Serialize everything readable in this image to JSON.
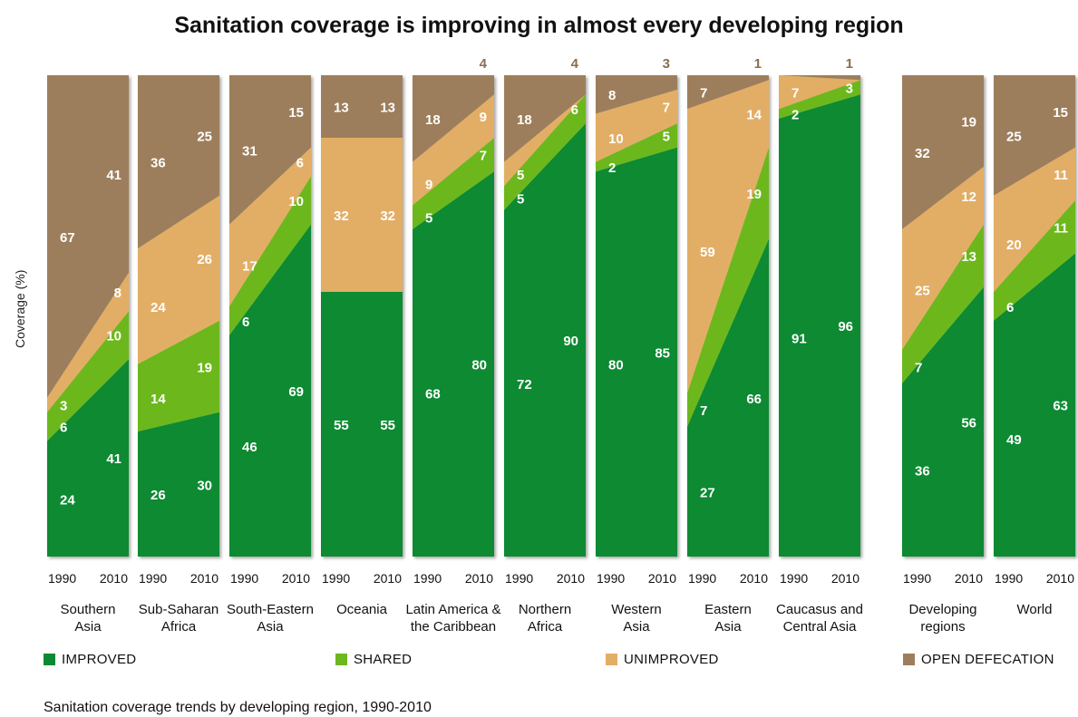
{
  "caption": "Sanitation coverage trends by developing region, 1990-2010",
  "colors": {
    "improved": "#0a8a32",
    "shared": "#6cb81f",
    "unimproved": "#e2ae66",
    "open_defecation": "#9d7e5c",
    "label_light": "#ffffff",
    "label_dark": "#8a6e4c"
  },
  "chart_data": {
    "type": "area",
    "title": "Sanitation coverage is improving in almost every developing region",
    "ylabel": "Coverage (%)",
    "ylim": [
      0,
      100
    ],
    "x": [
      "1990",
      "2010"
    ],
    "series_names": [
      "IMPROVED",
      "SHARED",
      "UNIMPROVED",
      "OPEN DEFECATION"
    ],
    "regions": [
      {
        "name": [
          "Southern",
          "Asia"
        ],
        "v1990": [
          24,
          6,
          3,
          67
        ],
        "v2010": [
          41,
          10,
          8,
          41
        ]
      },
      {
        "name": [
          "Sub-Saharan",
          "Africa"
        ],
        "v1990": [
          26,
          14,
          24,
          36
        ],
        "v2010": [
          30,
          19,
          26,
          25
        ]
      },
      {
        "name": [
          "South-Eastern",
          "Asia"
        ],
        "v1990": [
          46,
          6,
          17,
          31
        ],
        "v2010": [
          69,
          10,
          6,
          15
        ]
      },
      {
        "name": [
          "Oceania"
        ],
        "v1990": [
          55,
          0,
          32,
          13
        ],
        "v2010": [
          55,
          0,
          32,
          13
        ]
      },
      {
        "name": [
          "Latin America &",
          "the Caribbean"
        ],
        "v1990": [
          68,
          5,
          9,
          18
        ],
        "v2010": [
          80,
          7,
          9,
          4
        ]
      },
      {
        "name": [
          "Northern",
          "Africa"
        ],
        "v1990": [
          72,
          5,
          5,
          18
        ],
        "v2010": [
          90,
          6,
          0,
          4
        ]
      },
      {
        "name": [
          "Western",
          "Asia"
        ],
        "v1990": [
          80,
          2,
          10,
          8
        ],
        "v2010": [
          85,
          5,
          7,
          3
        ]
      },
      {
        "name": [
          "Eastern",
          "Asia"
        ],
        "v1990": [
          27,
          7,
          59,
          7
        ],
        "v2010": [
          66,
          19,
          14,
          1
        ]
      },
      {
        "name": [
          "Caucasus and",
          "Central Asia"
        ],
        "v1990": [
          91,
          2,
          7,
          0
        ],
        "v2010": [
          96,
          3,
          0,
          1
        ]
      },
      {
        "name": [
          "Developing",
          "regions"
        ],
        "v1990": [
          36,
          7,
          25,
          32
        ],
        "v2010": [
          56,
          13,
          12,
          19
        ]
      },
      {
        "name": [
          "World"
        ],
        "v1990": [
          49,
          6,
          20,
          25
        ],
        "v2010": [
          63,
          11,
          11,
          15
        ]
      }
    ]
  }
}
